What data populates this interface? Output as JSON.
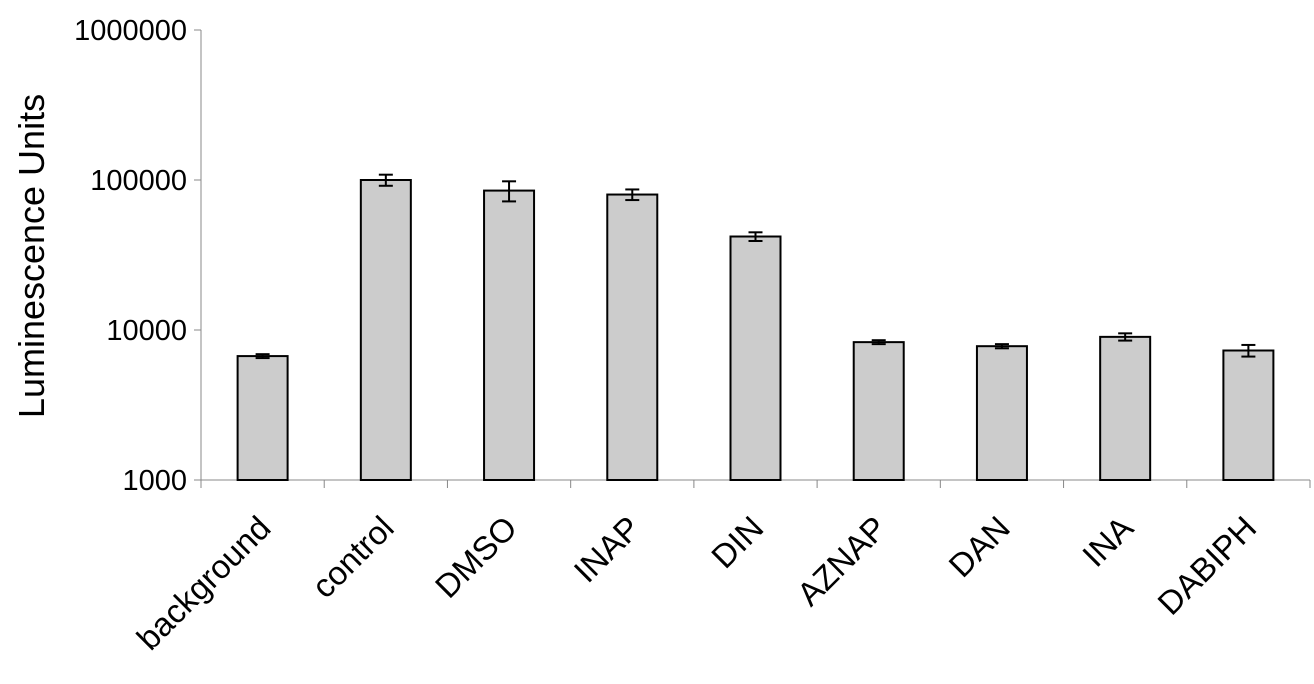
{
  "chart_data": {
    "type": "bar",
    "title": "",
    "xlabel": "",
    "ylabel": "Luminescence Units",
    "y_scale": "log",
    "ylim": [
      1000,
      1000000
    ],
    "y_ticks": [
      1000,
      10000,
      100000,
      1000000
    ],
    "y_tick_labels": [
      "1000",
      "10000",
      "100000",
      "1000000"
    ],
    "grid": false,
    "legend": "none",
    "categories": [
      "background",
      "control",
      "DMSO",
      "INAP",
      "DIN",
      "AZNAP",
      "DAN",
      "INA",
      "DABIPH"
    ],
    "values": [
      6700,
      100000,
      85000,
      80000,
      42000,
      8300,
      7800,
      9000,
      7300
    ],
    "error": [
      200,
      8500,
      13000,
      6500,
      2800,
      250,
      250,
      500,
      650
    ],
    "colors": {
      "bar_fill": "#cccccc",
      "bar_stroke": "#000000",
      "axis": "#888888"
    }
  }
}
